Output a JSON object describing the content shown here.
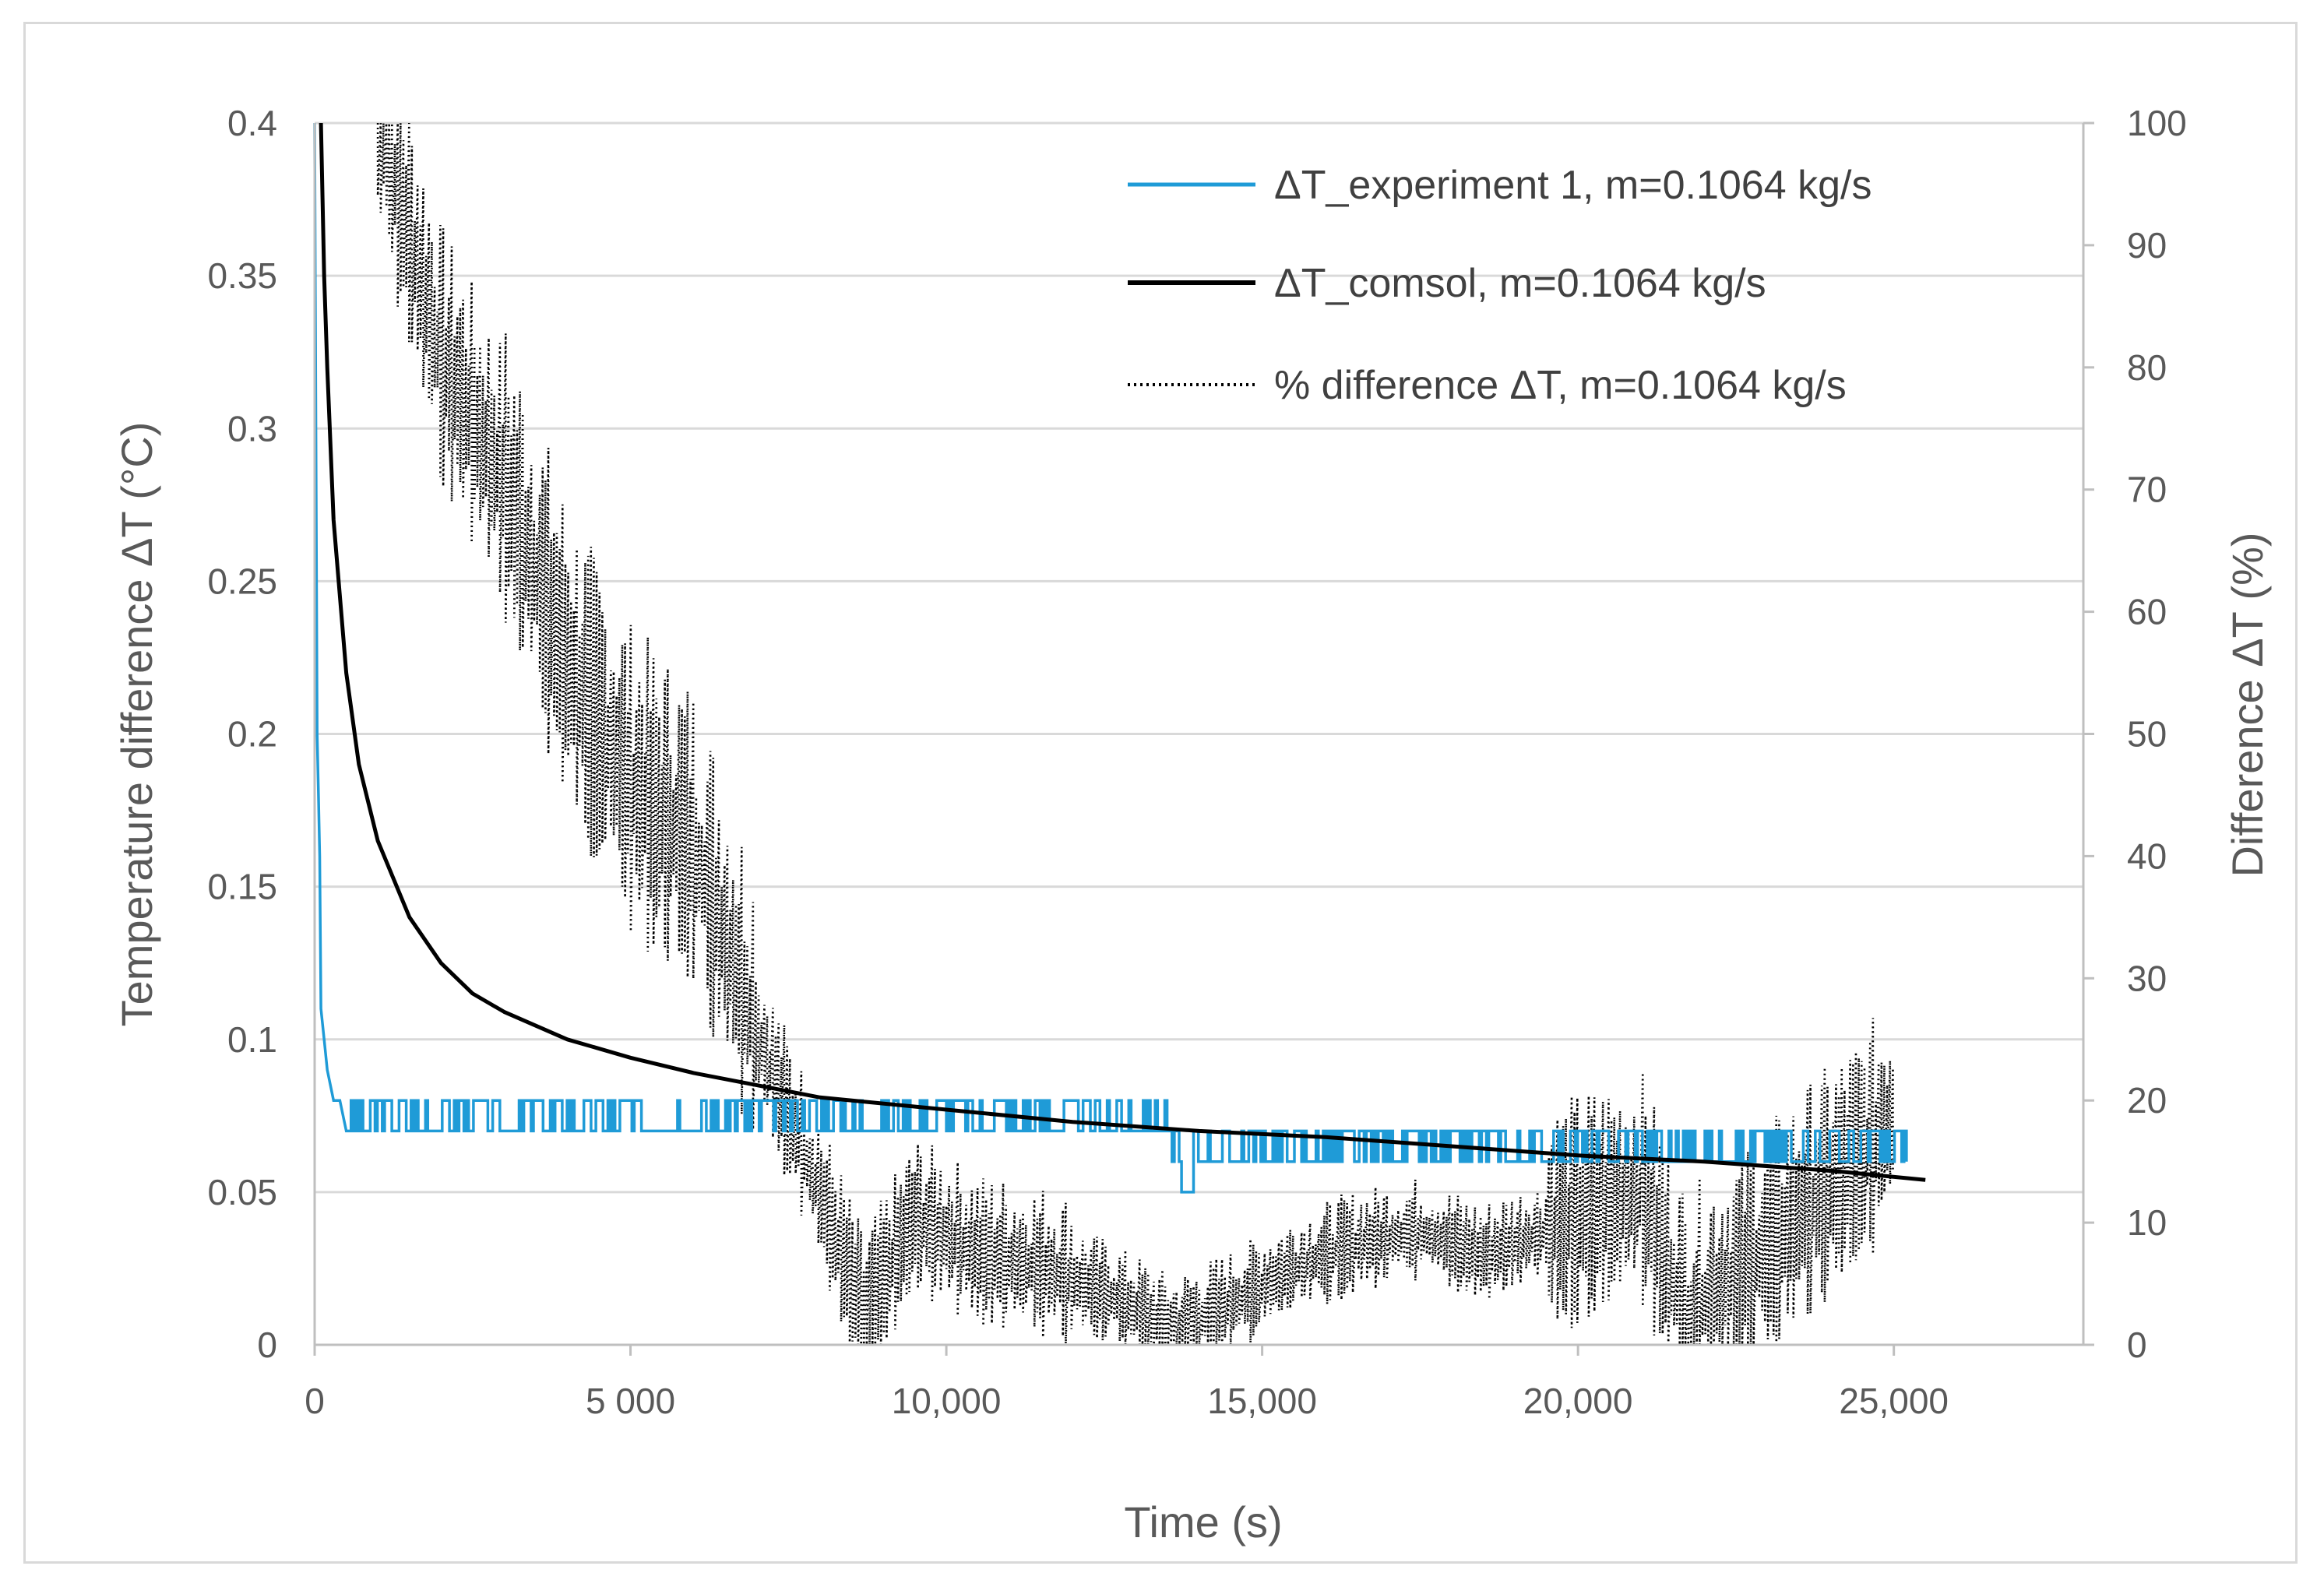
{
  "chart_data": {
    "type": "line",
    "title": "",
    "xlabel": "Time (s)",
    "ylabel": "Temperature difference ΔT (°C)",
    "y2label": "Difference ΔT (%)",
    "xlim": [
      0,
      28000
    ],
    "ylim": [
      0,
      0.4
    ],
    "y2lim": [
      0,
      100
    ],
    "grid": true,
    "legend_position": "top-right",
    "x_tick_labels": [
      {
        "value": 0,
        "label": "0"
      },
      {
        "value": 5000,
        "label": "5 000"
      },
      {
        "value": 10000,
        "label": "10,000"
      },
      {
        "value": 15000,
        "label": "15,000"
      },
      {
        "value": 20000,
        "label": "20,000"
      },
      {
        "value": 25000,
        "label": "25,000"
      }
    ],
    "y_tick_labels": [
      {
        "value": 0,
        "label": "0"
      },
      {
        "value": 0.05,
        "label": "0.05"
      },
      {
        "value": 0.1,
        "label": "0.1"
      },
      {
        "value": 0.15,
        "label": "0.15"
      },
      {
        "value": 0.2,
        "label": "0.2"
      },
      {
        "value": 0.25,
        "label": "0.25"
      },
      {
        "value": 0.3,
        "label": "0.3"
      },
      {
        "value": 0.35,
        "label": "0.35"
      },
      {
        "value": 0.4,
        "label": "0.4"
      }
    ],
    "y2_tick_labels": [
      {
        "value": 0,
        "label": "0"
      },
      {
        "value": 10,
        "label": "10"
      },
      {
        "value": 20,
        "label": "20"
      },
      {
        "value": 30,
        "label": "30"
      },
      {
        "value": 40,
        "label": "40"
      },
      {
        "value": 50,
        "label": "50"
      },
      {
        "value": 60,
        "label": "60"
      },
      {
        "value": 70,
        "label": "70"
      },
      {
        "value": 80,
        "label": "80"
      },
      {
        "value": 90,
        "label": "90"
      },
      {
        "value": 100,
        "label": "100"
      }
    ],
    "series": [
      {
        "name": "ΔT_experiment 1, m=0.1064 kg/s",
        "axis": "left",
        "color": "#1f9bd7",
        "style": "solid",
        "x": [
          0,
          20,
          40,
          60,
          80,
          100,
          150,
          200,
          300,
          400,
          500,
          1000,
          2000,
          3000,
          4000,
          5000,
          6000,
          7000,
          8000,
          9000,
          10000,
          11000,
          12000,
          13000,
          14000,
          15000,
          16000,
          17000,
          18000,
          19000,
          20000,
          21000,
          22000,
          23000,
          24000,
          25000
        ],
        "y": [
          0.4,
          0.3,
          0.2,
          0.18,
          0.16,
          0.11,
          0.1,
          0.09,
          0.08,
          0.08,
          0.07,
          0.075,
          0.075,
          0.075,
          0.075,
          0.075,
          0.07,
          0.075,
          0.075,
          0.07,
          0.075,
          0.07,
          0.075,
          0.07,
          0.07,
          0.065,
          0.065,
          0.065,
          0.065,
          0.065,
          0.065,
          0.065,
          0.065,
          0.065,
          0.065,
          0.065
        ]
      },
      {
        "name": "ΔT_comsol, m=0.1064 kg/s",
        "axis": "left",
        "color": "#000000",
        "style": "solid",
        "x": [
          100,
          150,
          200,
          300,
          500,
          700,
          1000,
          1500,
          2000,
          2500,
          3000,
          4000,
          5000,
          6000,
          7000,
          8000,
          10000,
          12000,
          14000,
          16000,
          18000,
          20000,
          22000,
          24000,
          25500
        ],
        "y": [
          0.4,
          0.35,
          0.32,
          0.27,
          0.22,
          0.19,
          0.165,
          0.14,
          0.125,
          0.115,
          0.109,
          0.1,
          0.094,
          0.089,
          0.085,
          0.081,
          0.077,
          0.073,
          0.07,
          0.068,
          0.065,
          0.062,
          0.06,
          0.057,
          0.054
        ]
      },
      {
        "name": "% difference ΔT, m=0.1064 kg/s",
        "axis": "right",
        "color": "#000000",
        "style": "dotted",
        "x": [
          1000,
          2000,
          3000,
          4000,
          5000,
          6000,
          7000,
          8000,
          8700,
          9500,
          10500,
          11500,
          12500,
          13600,
          14500,
          15500,
          16500,
          17500,
          18500,
          19000,
          20000,
          21000,
          21700,
          22500,
          23500,
          24500,
          25000
        ],
        "y": [
          100,
          80,
          70,
          55,
          45,
          40,
          25,
          12,
          2,
          10,
          7,
          6,
          4,
          1,
          3,
          6,
          8,
          9,
          7,
          8,
          10,
          12,
          2,
          5,
          10,
          15,
          18
        ]
      }
    ]
  }
}
